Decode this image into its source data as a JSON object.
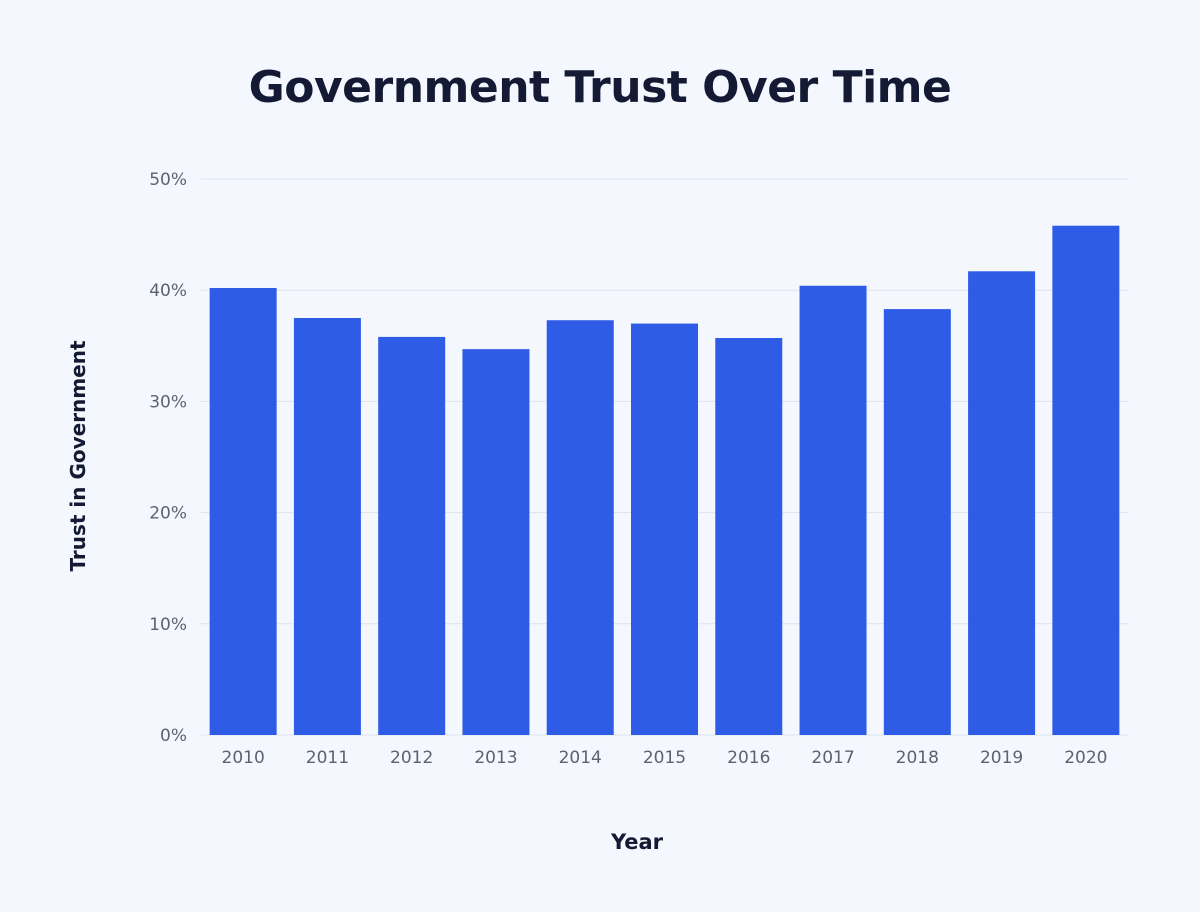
{
  "chart_data": {
    "type": "bar",
    "title": "Government Trust Over Time",
    "xlabel": "Year",
    "ylabel": "Trust in Government",
    "categories": [
      "2010",
      "2011",
      "2012",
      "2013",
      "2014",
      "2015",
      "2016",
      "2017",
      "2018",
      "2019",
      "2020"
    ],
    "values": [
      40.2,
      37.5,
      35.8,
      34.7,
      37.3,
      37.0,
      35.7,
      40.4,
      38.3,
      41.7,
      45.8
    ],
    "ylim": [
      0,
      50
    ],
    "yticks": [
      0,
      10,
      20,
      30,
      40,
      50
    ],
    "ytick_labels": [
      "0%",
      "10%",
      "20%",
      "30%",
      "40%",
      "50%"
    ],
    "grid": true,
    "legend": "none",
    "bar_color": "#2e5ce6",
    "grid_color": "#dde3ec"
  }
}
